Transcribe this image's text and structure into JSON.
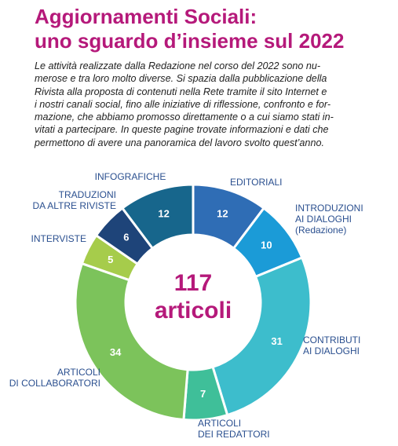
{
  "chart_data": {
    "type": "donut",
    "title": "Aggiornamenti Sociali:\nuno sguardo d’insieme sul 2022",
    "text": "Le attività realizzate dalla Redazione nel corso del 2022 sono nu-\nmerose e tra loro molto diverse. Si spazia dalla pubblicazione della\nRivista alla proposta di contenuti nella Rete tramite il sito Internet e\ni nostri canali social, fino alle iniziative di riflessione, confronto e for-\nmazione, che abbiamo promosso direttamente o a cui siamo stati in-\nvitati a partecipare. In queste pagine trovate informazioni e dati che\npermettono di avere una panoramica del lavoro svolto quest’anno.",
    "center_value": 117,
    "center_label": "articoli",
    "categories": [
      "EDITORIALI",
      "INTRODUZIONI\nAI DIALOGHI\n(Redazione)",
      "CONTRIBUTI\nAI DIALOGHI",
      "ARTICOLI\nDEI REDATTORI",
      "ARTICOLI\nDI COLLABORATORI",
      "INTERVISTE",
      "TRADUZIONI\nDA ALTRE RIVISTE",
      "INFOGRAFICHE"
    ],
    "values": [
      12,
      10,
      31,
      7,
      34,
      5,
      6,
      12
    ],
    "colors": [
      "#2f6db5",
      "#1b9bd7",
      "#3dbdcc",
      "#3fbf99",
      "#7cc35b",
      "#a6cc4b",
      "#1e4479",
      "#17668c"
    ]
  }
}
